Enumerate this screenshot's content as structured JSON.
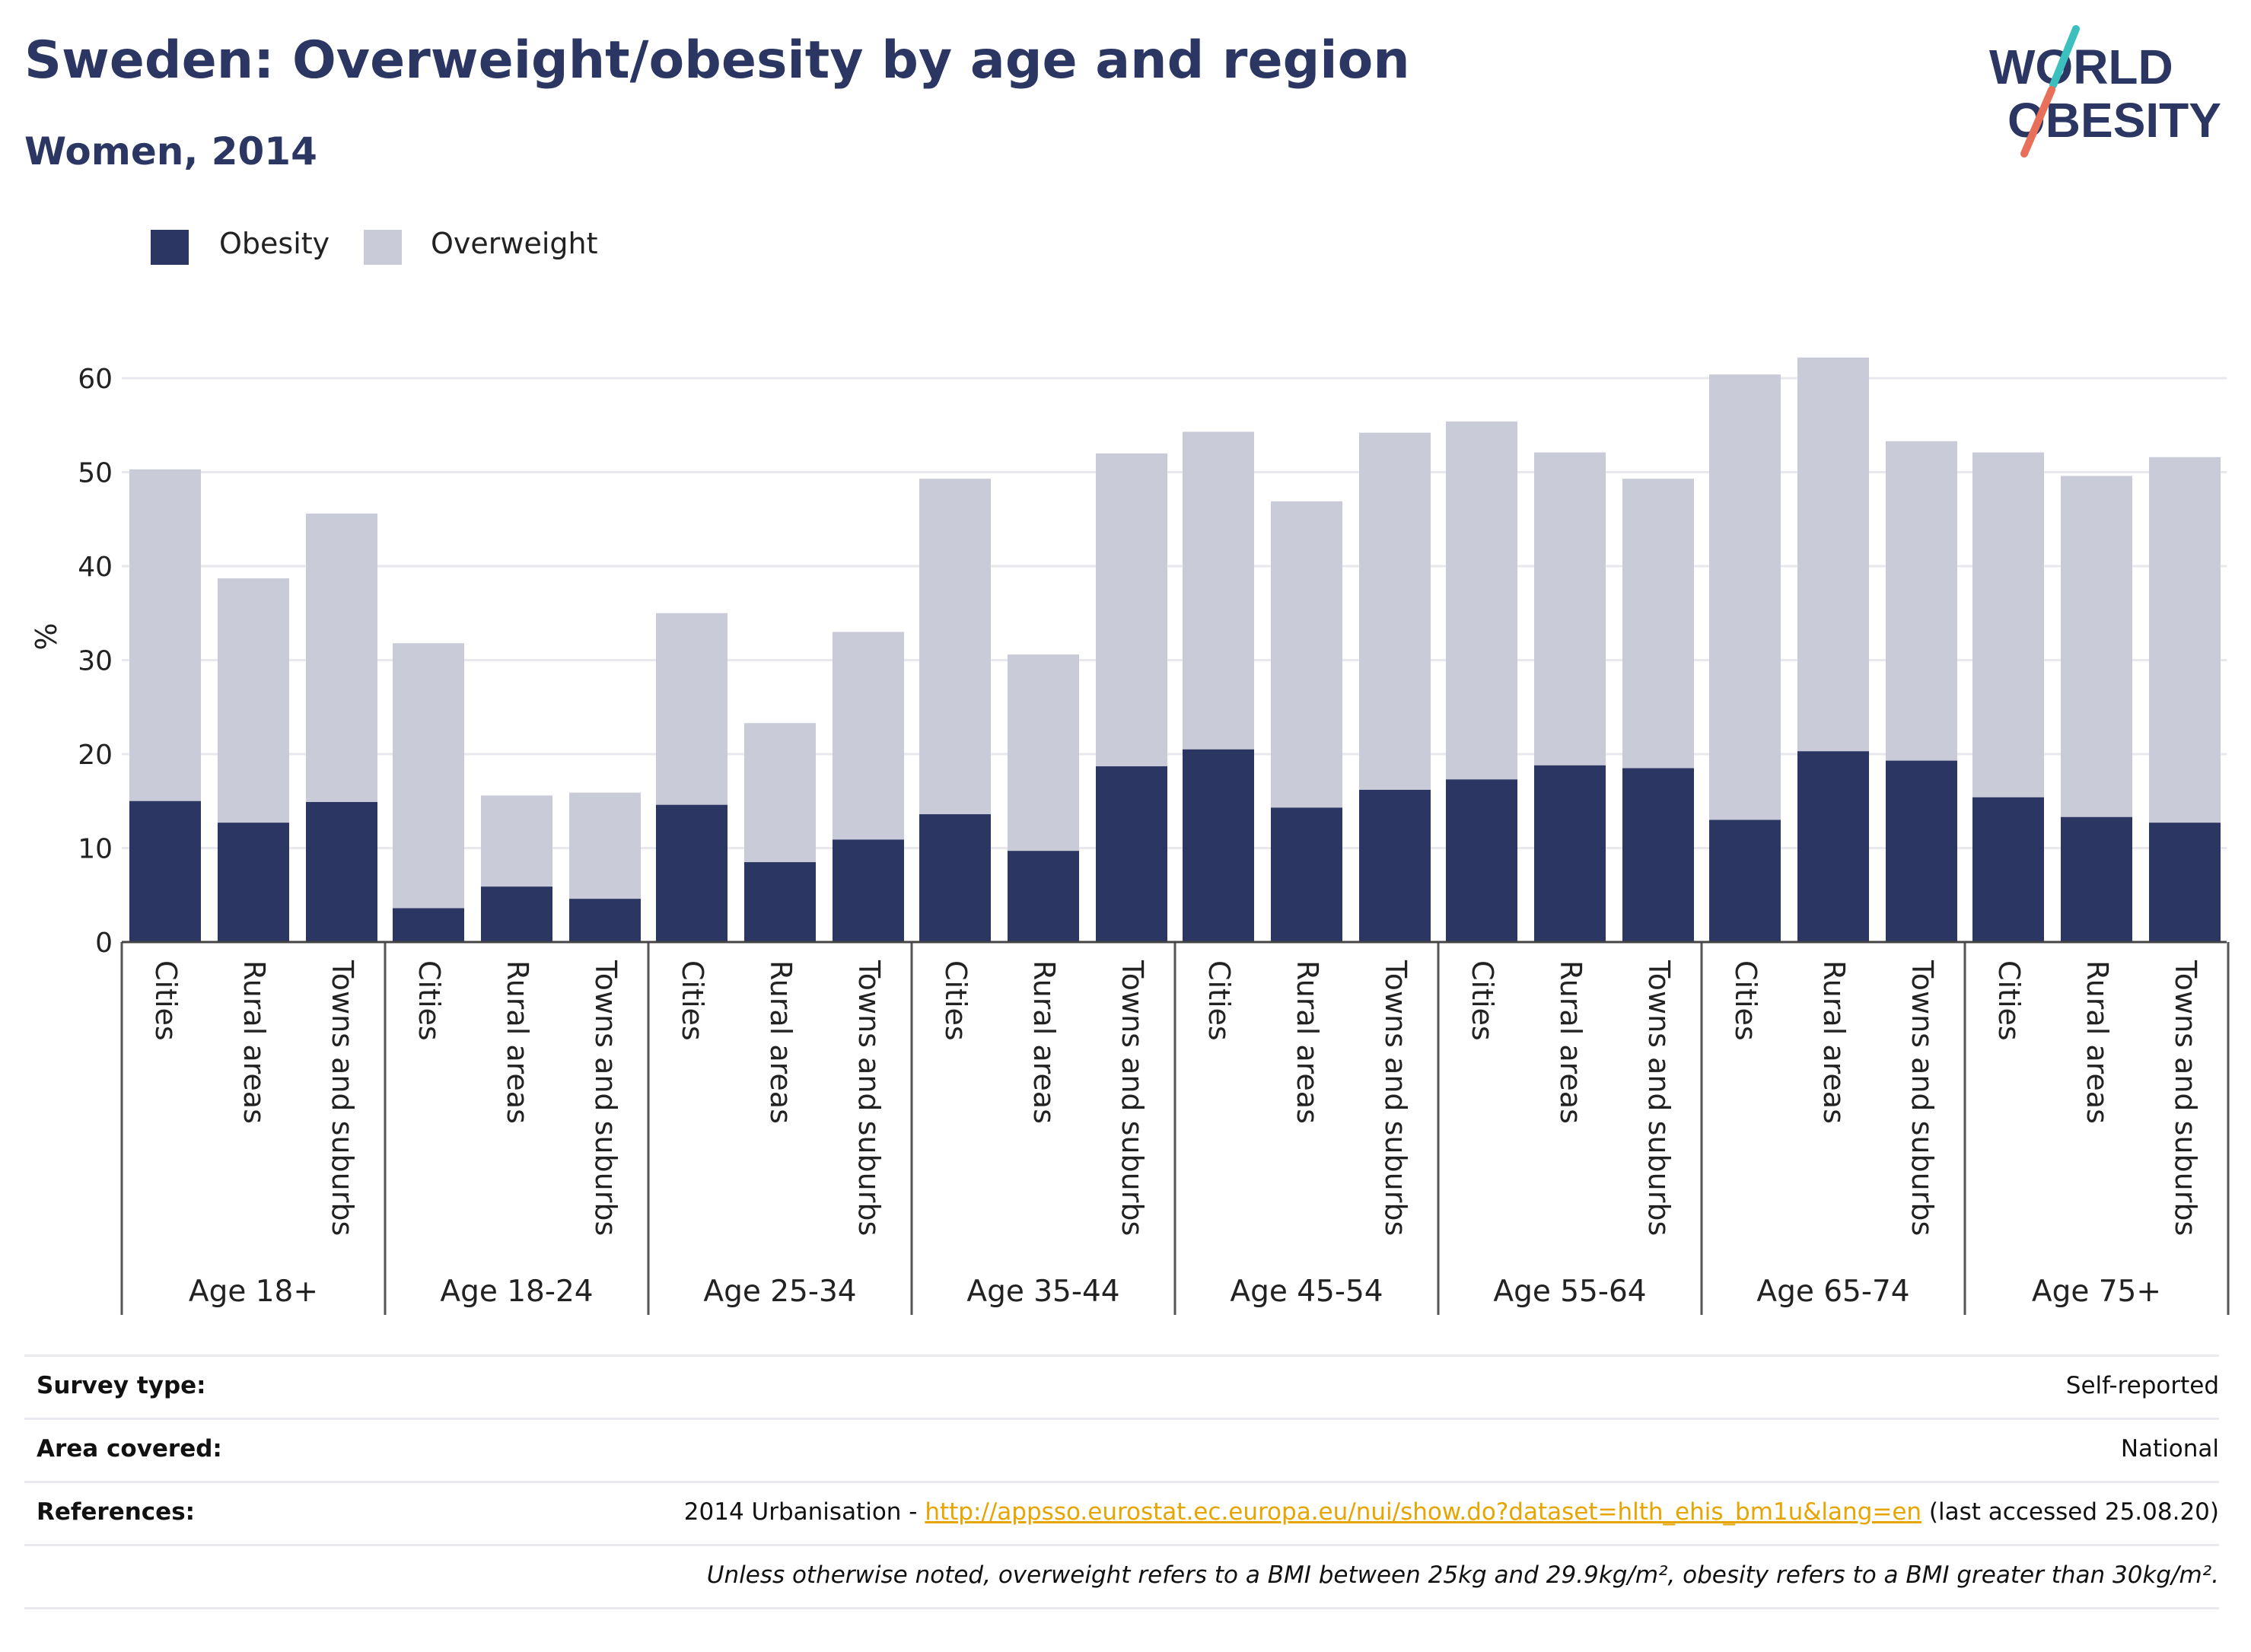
{
  "header": {
    "title": "Sweden: Overweight/obesity by age and region",
    "subtitle": "Women, 2014"
  },
  "logo": {
    "line1": "WORLD",
    "line2": "OBESITY",
    "colors": {
      "text": "#2b3663",
      "slash_top": "#3bbfbf",
      "slash_bottom": "#e8705a"
    }
  },
  "legend": {
    "items": [
      {
        "label": "Obesity",
        "color": "#2b3663"
      },
      {
        "label": "Overweight",
        "color": "#c9ccd8"
      }
    ]
  },
  "chart_data": {
    "type": "bar",
    "stacked": "overlay",
    "ylabel": "%",
    "ylim": [
      0,
      65
    ],
    "yticks": [
      0,
      10,
      20,
      30,
      40,
      50,
      60
    ],
    "grid": true,
    "legend_position": "top-left",
    "groups": [
      {
        "label": "Age 18+",
        "categories": [
          "Cities",
          "Rural areas",
          "Towns and suburbs"
        ],
        "obesity": [
          15.0,
          12.7,
          14.9
        ],
        "overweight": [
          50.3,
          38.7,
          45.6
        ]
      },
      {
        "label": "Age 18-24",
        "categories": [
          "Cities",
          "Rural areas",
          "Towns and suburbs"
        ],
        "obesity": [
          3.6,
          5.9,
          4.6
        ],
        "overweight": [
          31.8,
          15.6,
          15.9
        ]
      },
      {
        "label": "Age 25-34",
        "categories": [
          "Cities",
          "Rural areas",
          "Towns and suburbs"
        ],
        "obesity": [
          14.6,
          8.5,
          10.9
        ],
        "overweight": [
          35.0,
          23.3,
          33.0
        ]
      },
      {
        "label": "Age 35-44",
        "categories": [
          "Cities",
          "Rural areas",
          "Towns and suburbs"
        ],
        "obesity": [
          13.6,
          9.7,
          18.7
        ],
        "overweight": [
          49.3,
          30.6,
          52.0
        ]
      },
      {
        "label": "Age 45-54",
        "categories": [
          "Cities",
          "Rural areas",
          "Towns and suburbs"
        ],
        "obesity": [
          20.5,
          14.3,
          16.2
        ],
        "overweight": [
          54.3,
          46.9,
          54.2
        ]
      },
      {
        "label": "Age 55-64",
        "categories": [
          "Cities",
          "Rural areas",
          "Towns and suburbs"
        ],
        "obesity": [
          17.3,
          18.8,
          18.5
        ],
        "overweight": [
          55.4,
          52.1,
          49.3
        ]
      },
      {
        "label": "Age 65-74",
        "categories": [
          "Cities",
          "Rural areas",
          "Towns and suburbs"
        ],
        "obesity": [
          13.0,
          20.3,
          19.3
        ],
        "overweight": [
          60.4,
          62.2,
          53.3
        ]
      },
      {
        "label": "Age 75+",
        "categories": [
          "Cities",
          "Rural areas",
          "Towns and suburbs"
        ],
        "obesity": [
          15.4,
          13.3,
          12.7
        ],
        "overweight": [
          52.1,
          49.6,
          51.6
        ]
      }
    ]
  },
  "info": {
    "survey_type_label": "Survey type:",
    "survey_type_value": "Self-reported",
    "area_label": "Area covered:",
    "area_value": "National",
    "references_label": "References:",
    "references_prefix": "2014 Urbanisation - ",
    "references_link": "http://appsso.eurostat.ec.europa.eu/nui/show.do?dataset=hlth_ehis_bm1u&lang=en",
    "references_suffix": " (last accessed 25.08.20)",
    "note": "Unless otherwise noted, overweight refers to a BMI between 25kg and 29.9kg/m², obesity refers to a BMI greater than 30kg/m²."
  }
}
